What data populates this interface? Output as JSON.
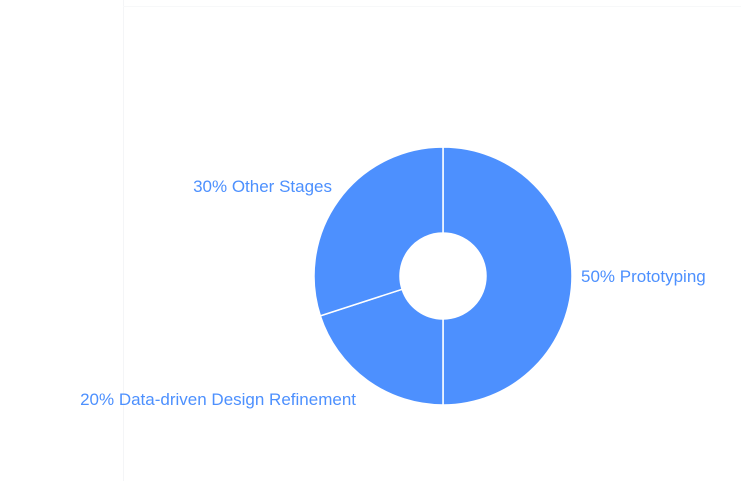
{
  "chart_data": {
    "type": "pie",
    "variant": "donut",
    "categories": [
      "Prototyping",
      "Data-driven Design Refinement",
      "Other Stages"
    ],
    "values": [
      50,
      20,
      30
    ],
    "labels": [
      "50% Prototyping",
      "20% Data-driven Design Refinement",
      "30% Other Stages"
    ],
    "title": "",
    "legend": "none",
    "colors": {
      "slice": "#4d90fe",
      "separator": "#ffffff",
      "label": "#4d90fe"
    },
    "start_angle_deg": 0,
    "direction": "clockwise"
  }
}
